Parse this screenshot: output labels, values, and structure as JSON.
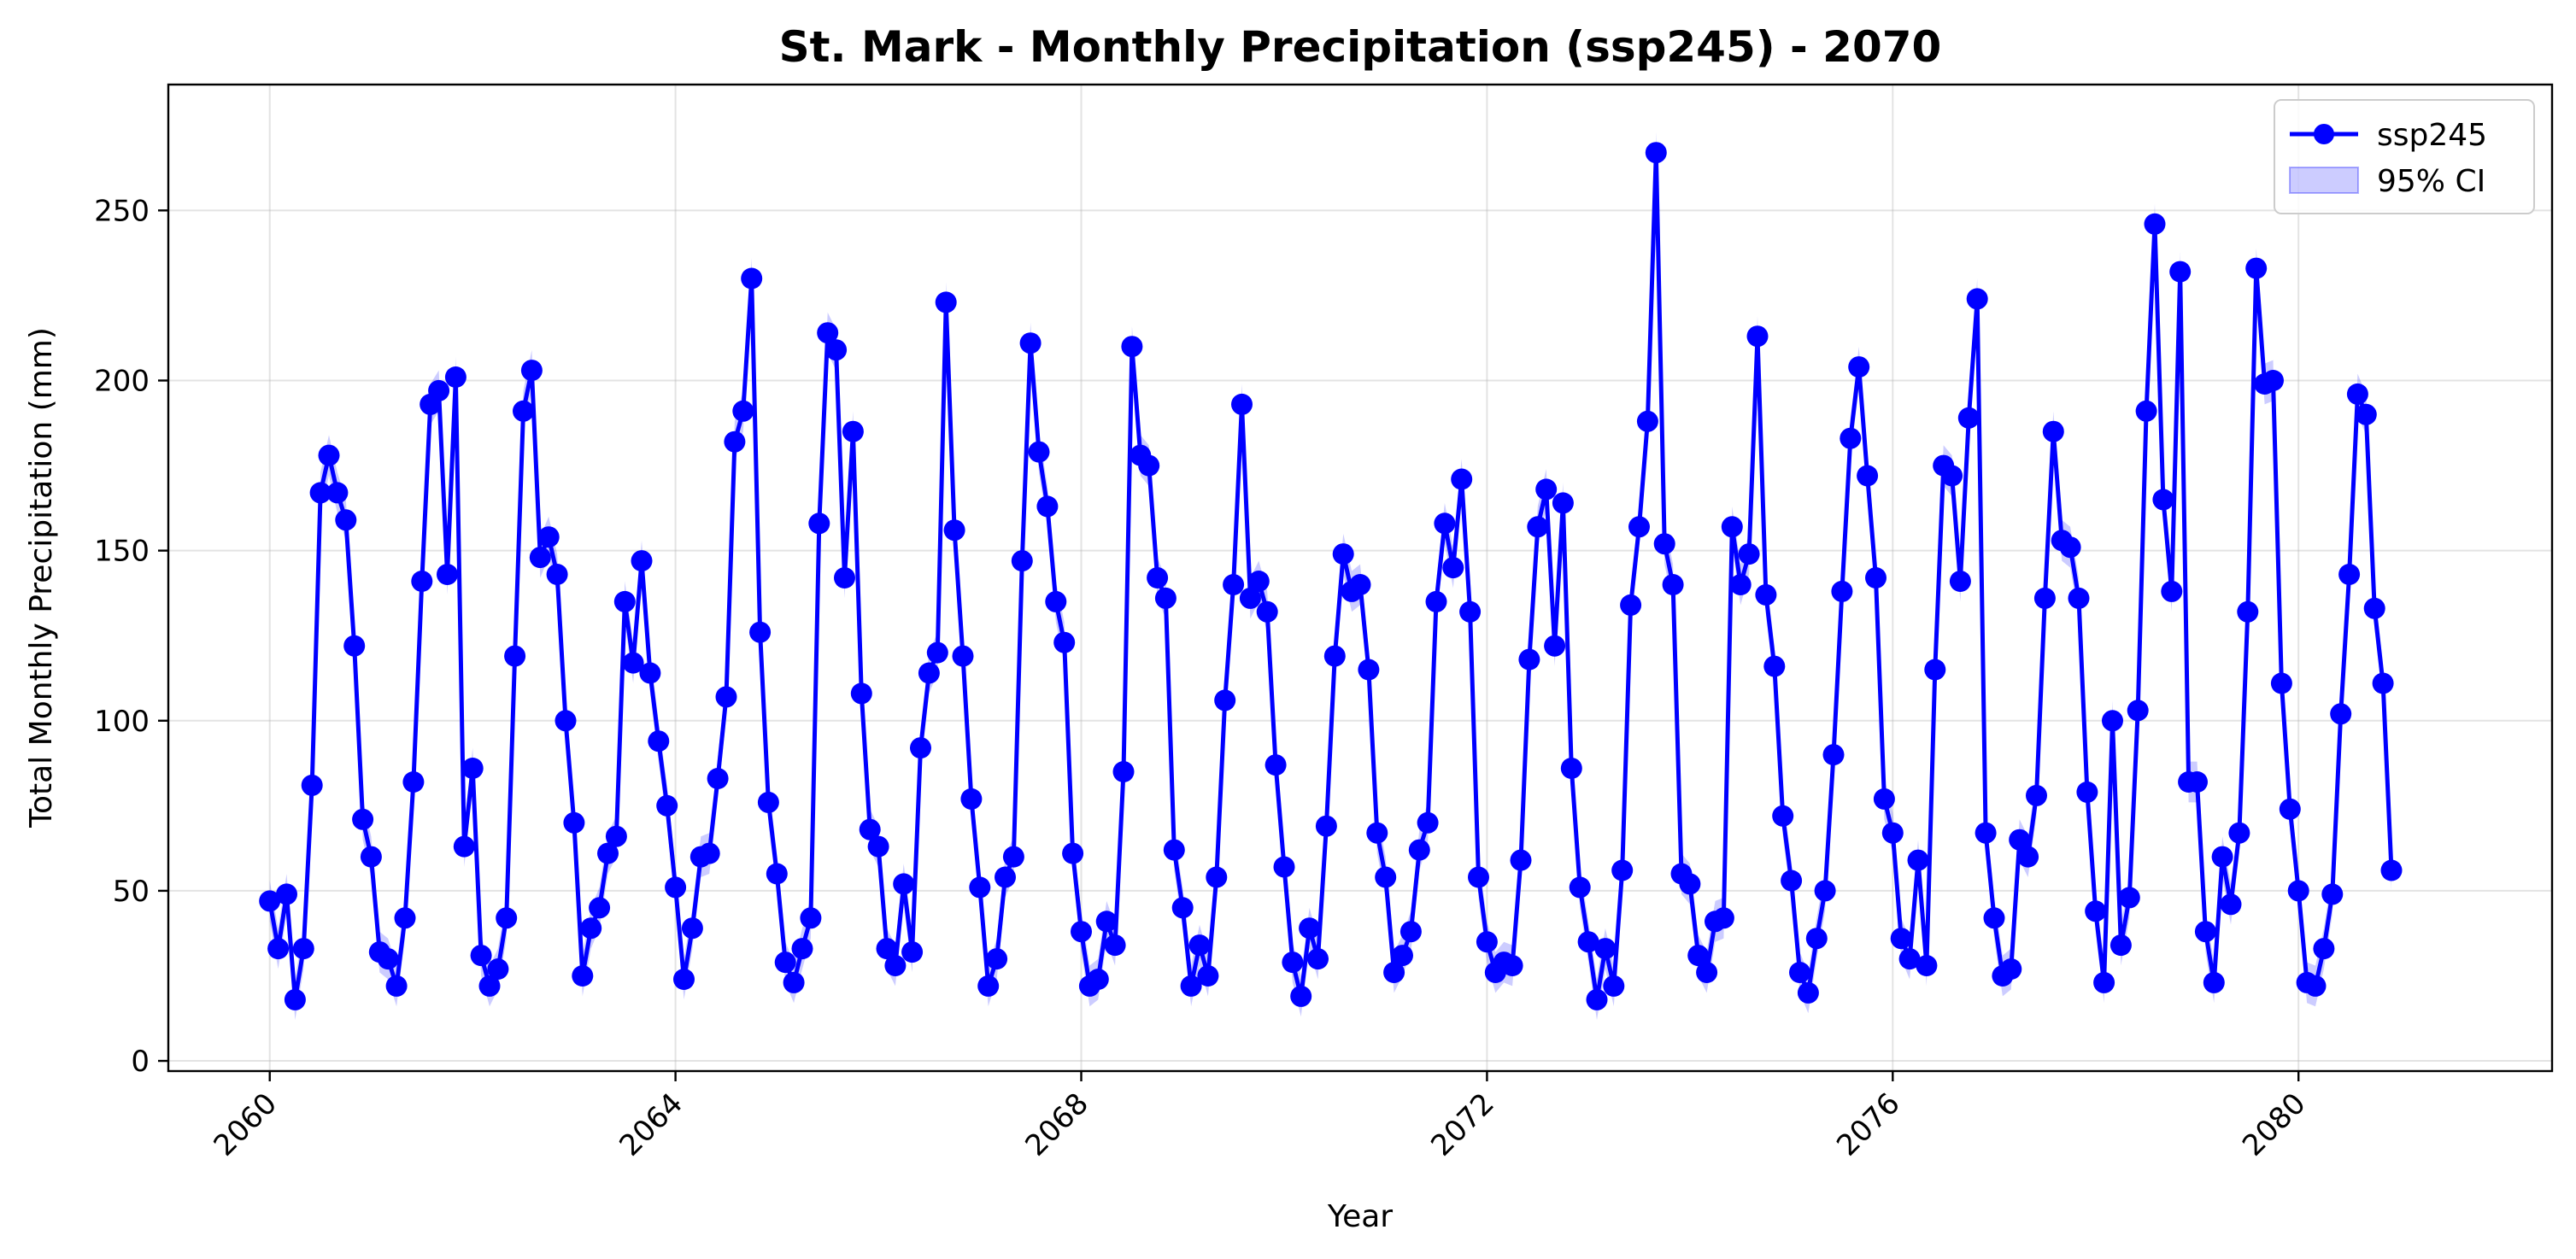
{
  "chart_data": {
    "type": "line",
    "title": "St. Mark - Monthly Precipitation (ssp245) - 2070",
    "xlabel": "Year",
    "ylabel": "Total Monthly Precipitation (mm)",
    "xlim": [
      2059.0,
      2082.5
    ],
    "ylim": [
      -3,
      287
    ],
    "x_ticks": [
      2060,
      2064,
      2068,
      2072,
      2076,
      2080
    ],
    "x_tick_labels": [
      "2060",
      "2064",
      "2068",
      "2072",
      "2076",
      "2080"
    ],
    "y_ticks": [
      0,
      50,
      100,
      150,
      200,
      250
    ],
    "y_tick_labels": [
      "0",
      "50",
      "100",
      "150",
      "200",
      "250"
    ],
    "grid": true,
    "legend_position": "top-right",
    "series": [
      {
        "name": "ssp245",
        "color": "#0000ff",
        "marker": "circle",
        "start_year": 2060,
        "x_step": "monthly",
        "values": [
          47,
          33,
          49,
          18,
          33,
          81,
          167,
          178,
          167,
          159,
          122,
          71,
          60,
          32,
          30,
          22,
          42,
          82,
          141,
          193,
          197,
          143,
          201,
          63,
          86,
          31,
          22,
          27,
          42,
          119,
          191,
          203,
          148,
          154,
          143,
          100,
          70,
          25,
          39,
          45,
          61,
          66,
          135,
          117,
          147,
          114,
          94,
          75,
          51,
          24,
          39,
          60,
          61,
          83,
          107,
          182,
          191,
          230,
          126,
          76,
          55,
          29,
          23,
          33,
          42,
          158,
          214,
          209,
          142,
          185,
          108,
          68,
          63,
          33,
          28,
          52,
          32,
          92,
          114,
          120,
          223,
          156,
          119,
          77,
          51,
          22,
          30,
          54,
          60,
          147,
          211,
          179,
          163,
          135,
          123,
          61,
          38,
          22,
          24,
          41,
          34,
          85,
          210,
          178,
          175,
          142,
          136,
          62,
          45,
          22,
          34,
          25,
          54,
          106,
          140,
          193,
          136,
          141,
          132,
          87,
          57,
          29,
          19,
          39,
          30,
          69,
          119,
          149,
          138,
          140,
          115,
          67,
          54,
          26,
          31,
          38,
          62,
          70,
          135,
          158,
          145,
          171,
          132,
          54,
          35,
          26,
          29,
          28,
          59,
          118,
          157,
          168,
          122,
          164,
          86,
          51,
          35,
          18,
          33,
          22,
          56,
          134,
          157,
          188,
          267,
          152,
          140,
          55,
          52,
          31,
          26,
          41,
          42,
          157,
          140,
          149,
          213,
          137,
          116,
          72,
          53,
          26,
          20,
          36,
          50,
          90,
          138,
          183,
          204,
          172,
          142,
          77,
          67,
          36,
          30,
          59,
          28,
          115,
          175,
          172,
          141,
          189,
          224,
          67,
          42,
          25,
          27,
          65,
          60,
          78,
          136,
          185,
          153,
          151,
          136,
          79,
          44,
          23,
          100,
          34,
          48,
          103,
          191,
          246,
          165,
          138,
          232,
          82,
          82,
          38,
          23,
          60,
          46,
          67,
          132,
          233,
          199,
          200,
          111,
          74,
          50,
          23,
          22,
          33,
          49,
          102,
          143,
          196,
          190,
          133,
          111,
          56
        ]
      },
      {
        "name": "95% CI",
        "color": "#0000ff",
        "opacity": 0.2,
        "band_halfwidth_mm": 6
      }
    ]
  }
}
